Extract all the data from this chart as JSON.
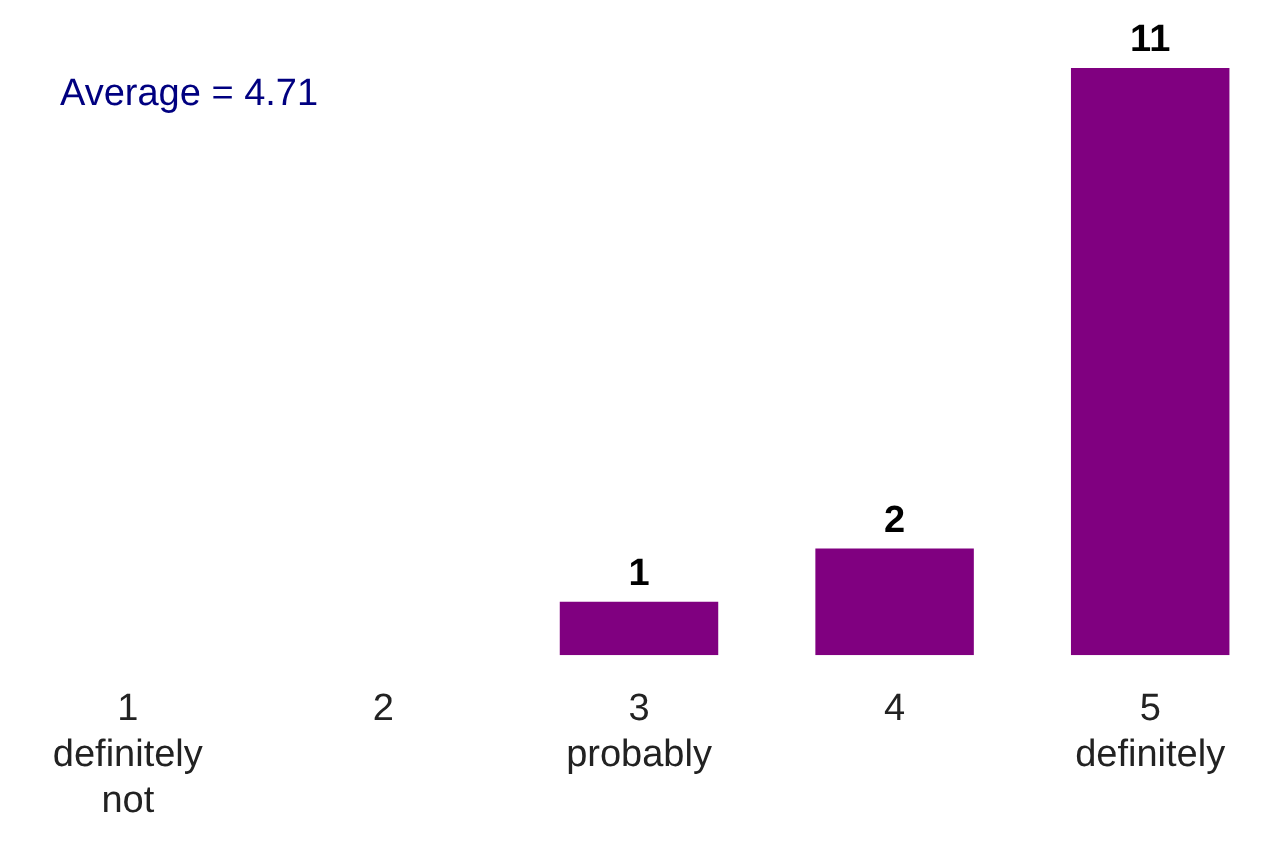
{
  "chart_data": {
    "type": "bar",
    "categories": [
      "1\ndefinitely\nnot",
      "2",
      "3\nprobably",
      "4",
      "5\ndefinitely"
    ],
    "values": [
      0,
      0,
      1,
      2,
      11
    ],
    "value_labels": [
      null,
      null,
      "1",
      "2",
      "11"
    ],
    "color": "#800080",
    "annotations": [
      "Average = 4.71"
    ]
  }
}
